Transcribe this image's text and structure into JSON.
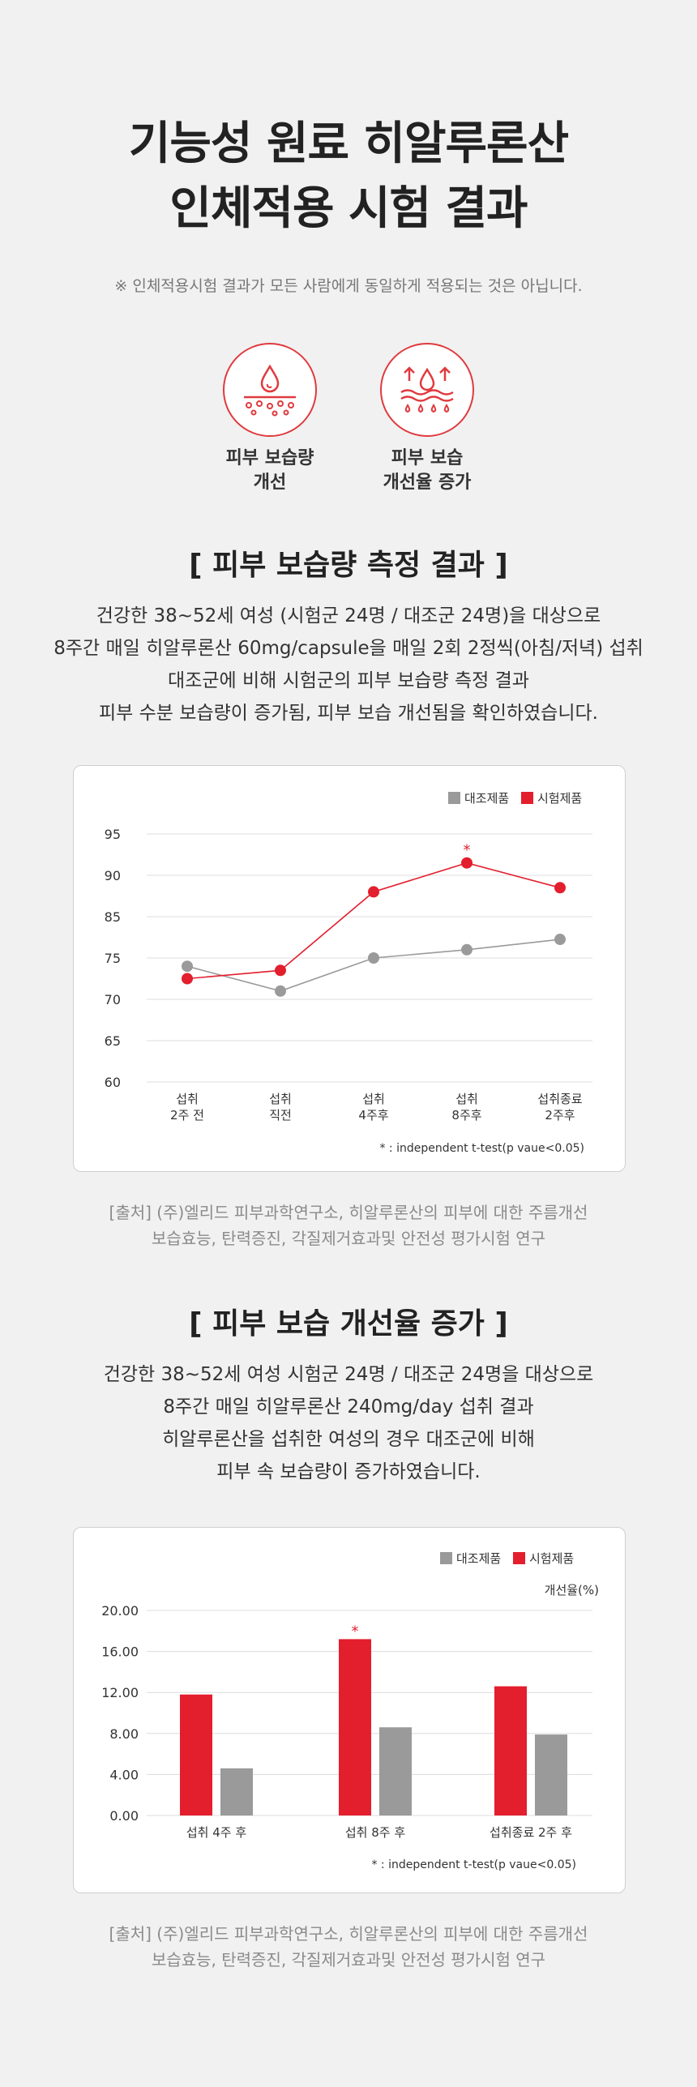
{
  "header": {
    "title_line1": "기능성 원료 히알루론산",
    "title_line2": "인체적용 시험 결과",
    "note": "※ 인체적용시험 결과가 모든 사람에게 동일하게 적용되는 것은 아닙니다."
  },
  "badges": [
    {
      "icon": "skin-moisture-icon",
      "label": "피부 보습량\n개선"
    },
    {
      "icon": "moisture-increase-icon",
      "label": "피부 보습\n개선율 증가"
    }
  ],
  "section1": {
    "title": "[ 피부 보습량 측정 결과 ]",
    "lines": [
      "건강한 38~52세 여성 (시험군 24명 / 대조군 24명)을 대상으로",
      "8주간 매일 히알루론산 60mg/capsule을 매일 2회 2정씩(아침/저녁) 섭취",
      "대조군에 비해 시험군의 피부 보습량 측정 결과",
      "피부 수분 보습량이 증가됨, 피부 보습 개선됨을 확인하였습니다."
    ],
    "source_lines": [
      "[출처] (주)엘리드 피부과학연구소, 히알루론산의 피부에 대한 주름개선",
      "보습효능, 탄력증진, 각질제거효과및 안전성 평가시험 연구"
    ]
  },
  "section2": {
    "title": "[ 피부 보습 개선율 증가 ]",
    "lines": [
      "건강한 38~52세 여성 시험군 24명 / 대조군 24명을 대상으로",
      "8주간 매일 히알루론산 240mg/day 섭취 결과",
      "히알루론산을 섭취한 여성의 경우 대조군에 비해",
      "피부 속 보습량이 증가하였습니다."
    ],
    "source_lines": [
      "[출처] (주)엘리드 피부과학연구소, 히알루론산의 피부에 대한 주름개선",
      "보습효능, 탄력증진, 각질제거효과및 안전성 평가시험 연구"
    ]
  },
  "colors": {
    "accent": "#e31e2d",
    "control": "#9a9a9a"
  },
  "chart_data": [
    {
      "type": "line",
      "categories": [
        [
          "섭취",
          "2주 전"
        ],
        [
          "섭취",
          "직전"
        ],
        [
          "섭취",
          "4주후"
        ],
        [
          "섭취",
          "8주후"
        ],
        [
          "섭취종료",
          "2주후"
        ]
      ],
      "y_ticks": [
        "95",
        "90",
        "85",
        "75",
        "70",
        "65",
        "60"
      ],
      "series": [
        {
          "name": "대조제품",
          "color": "#9a9a9a",
          "values": [
            74,
            71,
            75,
            77,
            79.5
          ]
        },
        {
          "name": "시험제품",
          "color": "#e31e2d",
          "values": [
            72.5,
            73.5,
            88,
            91.5,
            88.5
          ]
        }
      ],
      "annotation": {
        "text": "*",
        "index": 3
      },
      "footnote": "* : independent t-test(p vaue<0.05)",
      "legend": "top-right",
      "grid": true
    },
    {
      "type": "bar",
      "categories": [
        "섭취 4주 후",
        "섭취 8주 후",
        "섭취종료 2주 후"
      ],
      "y_ticks": [
        "0.00",
        "4.00",
        "8.00",
        "12.00",
        "16.00",
        "20.00"
      ],
      "ylim": [
        0,
        20
      ],
      "ylabel": "개선율(%)",
      "series": [
        {
          "name": "시험제품",
          "color": "#e31e2d",
          "values": [
            11.8,
            17.2,
            12.6
          ]
        },
        {
          "name": "대조제품",
          "color": "#9a9a9a",
          "values": [
            4.6,
            8.6,
            7.9
          ]
        }
      ],
      "legend_order": [
        "대조제품",
        "시험제품"
      ],
      "annotation": {
        "text": "*",
        "index": 1
      },
      "footnote": "* : independent t-test(p vaue<0.05)",
      "legend": "top-right",
      "grid": true
    }
  ]
}
